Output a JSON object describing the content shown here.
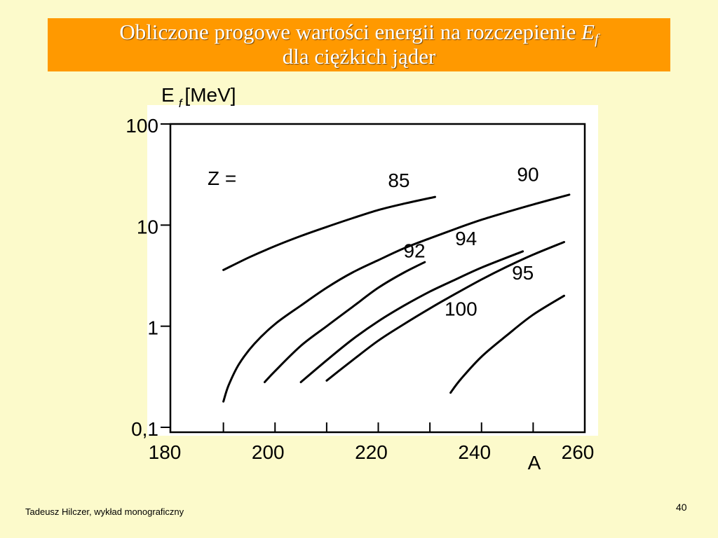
{
  "slide": {
    "title_line1": "Obliczone progowe wartości energii na rozczepienie",
    "title_symbol": "E",
    "title_subscript": "f",
    "title_line2": "dla ciężkich jąder",
    "footer": "Tadeusz Hilczer, wykład monograficzny",
    "page_number": "40"
  },
  "colors": {
    "background": "#fcfacb",
    "title_bar": "#ff9900",
    "title_text": "#ffffff",
    "plot_area": "#ffffff",
    "curve": "#000000"
  },
  "chart_data": {
    "type": "line",
    "y_scale": "log",
    "xlim": [
      180,
      260
    ],
    "ylim": [
      0.1,
      100
    ],
    "grid": false,
    "y_label_symbol": "E",
    "y_label_subscript": "f",
    "y_label_unit": "[MeV]",
    "x_label": "A",
    "x_ticks": [
      190,
      200,
      210,
      220,
      230,
      240,
      250,
      260
    ],
    "x_tick_labels": [
      {
        "value": 180,
        "text": "180"
      },
      {
        "value": 200,
        "text": "200"
      },
      {
        "value": 220,
        "text": "220"
      },
      {
        "value": 240,
        "text": "240"
      },
      {
        "value": 260,
        "text": "260"
      }
    ],
    "y_ticks": [
      100,
      10,
      1,
      0.1
    ],
    "y_tick_labels": [
      {
        "value": 100,
        "text": "100"
      },
      {
        "value": 10,
        "text": "10"
      },
      {
        "value": 1,
        "text": "1"
      },
      {
        "value": 0.1,
        "text": "0,1"
      }
    ],
    "legend_prefix": "Z =",
    "series": [
      {
        "name": "85",
        "x": [
          190,
          195,
          200,
          205,
          210,
          215,
          220,
          225,
          231
        ],
        "y": [
          3.6,
          4.8,
          6.2,
          7.8,
          9.6,
          11.7,
          14.1,
          16.3,
          19
        ]
      },
      {
        "name": "90",
        "x": [
          190,
          191,
          193,
          196,
          200,
          205,
          210,
          215,
          220,
          225,
          230,
          235,
          240,
          245,
          250,
          257
        ],
        "y": [
          0.18,
          0.26,
          0.42,
          0.67,
          1.05,
          1.6,
          2.4,
          3.4,
          4.5,
          5.9,
          7.4,
          9.2,
          11.3,
          13.5,
          16,
          20
        ]
      },
      {
        "name": "92",
        "x": [
          198,
          200,
          205,
          210,
          215,
          220,
          225,
          229
        ],
        "y": [
          0.28,
          0.36,
          0.64,
          1.0,
          1.55,
          2.4,
          3.4,
          4.3
        ]
      },
      {
        "name": "94",
        "x": [
          205,
          210,
          215,
          220,
          225,
          230,
          235,
          240,
          248
        ],
        "y": [
          0.28,
          0.46,
          0.74,
          1.12,
          1.6,
          2.2,
          2.9,
          3.8,
          5.5
        ]
      },
      {
        "name": "95",
        "x": [
          210,
          215,
          220,
          225,
          230,
          235,
          240,
          245,
          250,
          256
        ],
        "y": [
          0.29,
          0.46,
          0.72,
          1.05,
          1.5,
          2.1,
          2.9,
          3.9,
          5.1,
          6.8
        ]
      },
      {
        "name": "100",
        "x": [
          234,
          236,
          240,
          245,
          250,
          256
        ],
        "y": [
          0.22,
          0.3,
          0.5,
          0.82,
          1.3,
          2.0
        ]
      }
    ],
    "series_label_positions": [
      {
        "name": "85",
        "x": 224,
        "y": 28
      },
      {
        "name": "90",
        "x": 249,
        "y": 32
      },
      {
        "name": "92",
        "x": 227,
        "y": 5.6
      },
      {
        "name": "94",
        "x": 237,
        "y": 7.4
      },
      {
        "name": "95",
        "x": 248,
        "y": 3.4
      },
      {
        "name": "100",
        "x": 236,
        "y": 1.5
      }
    ]
  }
}
